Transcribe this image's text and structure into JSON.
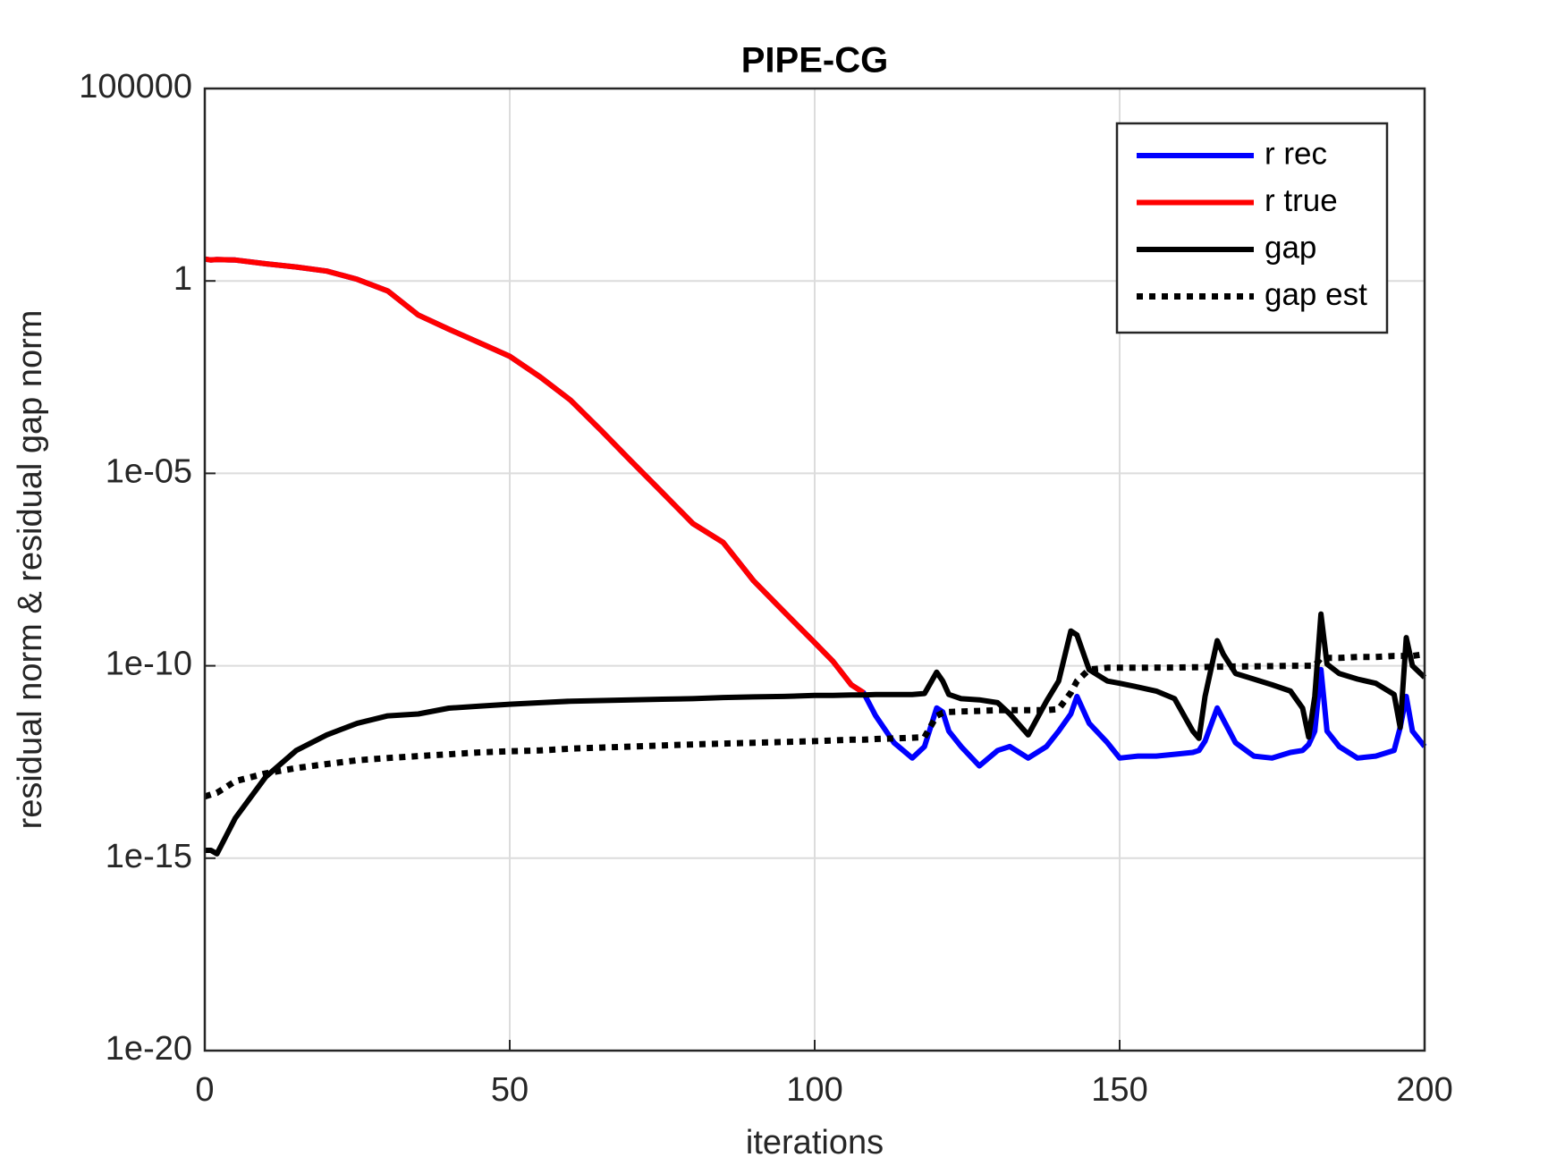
{
  "chart_data": {
    "type": "line",
    "title": "PIPE-CG",
    "xlabel": "iterations",
    "ylabel": "residual norm  &  residual gap norm",
    "log_y": true,
    "grid": true,
    "legend": "upper right",
    "xlim": [
      0,
      200
    ],
    "xticks": [
      0,
      50,
      100,
      150,
      200
    ],
    "ylim": [
      1e-20,
      100000
    ],
    "yticks": [
      {
        "value": 1e-20,
        "label": "1e-20"
      },
      {
        "value": 1e-15,
        "label": "1e-15"
      },
      {
        "value": 1e-10,
        "label": "1e-10"
      },
      {
        "value": 1e-05,
        "label": "1e-05"
      },
      1,
      100000
    ],
    "x": [
      0,
      1,
      2,
      5,
      10,
      15,
      20,
      25,
      30,
      35,
      40,
      45,
      50,
      55,
      60,
      65,
      70,
      75,
      80,
      85,
      90,
      95,
      100,
      103,
      106,
      108,
      110,
      113,
      116,
      118,
      120,
      121,
      122,
      124,
      127,
      130,
      132,
      135,
      138,
      140,
      142,
      143,
      145,
      148,
      150,
      153,
      156,
      159,
      162,
      163,
      164,
      166,
      167,
      169,
      172,
      175,
      178,
      180,
      181,
      182,
      183,
      184,
      186,
      189,
      192,
      195,
      196,
      197,
      198,
      200
    ],
    "series": [
      {
        "name": "r rec",
        "color": "#0000ff",
        "style": "solid",
        "values": [
          3.7,
          3.5,
          3.6,
          3.5,
          2.8,
          2.3,
          1.8,
          1.1,
          0.55,
          0.13,
          0.056,
          0.025,
          0.011,
          0.0032,
          0.00079,
          0.00013,
          2e-05,
          3.2e-06,
          5e-07,
          1.6e-07,
          1.6e-08,
          2.5e-09,
          4e-10,
          1.3e-10,
          3.2e-11,
          2e-11,
          5e-12,
          1e-12,
          4e-13,
          8e-13,
          8e-12,
          6.3e-12,
          2e-12,
          8e-13,
          2.5e-13,
          6.3e-13,
          8e-13,
          4e-13,
          8e-13,
          2e-12,
          5.6e-12,
          1.6e-11,
          3.2e-12,
          1e-12,
          4e-13,
          4.5e-13,
          4.5e-13,
          5e-13,
          5.6e-13,
          6.3e-13,
          1.1e-12,
          8e-12,
          4e-12,
          1e-12,
          4.5e-13,
          4e-13,
          5.6e-13,
          6.3e-13,
          9e-13,
          2e-12,
          8e-11,
          2e-12,
          8e-13,
          4e-13,
          4.5e-13,
          6.3e-13,
          2.5e-12,
          1.6e-11,
          2e-12,
          8e-13
        ]
      },
      {
        "name": "r true",
        "color": "#ff0000",
        "style": "solid",
        "values": [
          3.7,
          3.5,
          3.6,
          3.5,
          2.8,
          2.3,
          1.8,
          1.1,
          0.55,
          0.13,
          0.056,
          0.025,
          0.011,
          0.0032,
          0.00079,
          0.00013,
          2e-05,
          3.2e-06,
          5e-07,
          1.6e-07,
          1.6e-08,
          2.5e-09,
          4e-10,
          1.3e-10,
          3.2e-11,
          2e-11,
          null,
          null,
          null,
          null,
          null,
          null,
          null,
          null,
          null,
          null,
          null,
          null,
          null,
          null,
          null,
          null,
          null,
          null,
          null,
          null,
          null,
          null,
          null,
          null,
          null,
          null,
          null,
          null,
          null,
          null,
          null,
          null,
          null,
          null,
          null,
          null,
          null,
          null,
          null,
          null,
          null,
          null,
          null,
          null
        ]
      },
      {
        "name": "gap",
        "color": "#000000",
        "style": "solid",
        "values": [
          1.6e-15,
          1.6e-15,
          1.3e-15,
          1.1e-14,
          1.3e-13,
          6.3e-13,
          1.6e-12,
          3.2e-12,
          5e-12,
          5.6e-12,
          7.9e-12,
          8.9e-12,
          1e-11,
          1.1e-11,
          1.2e-11,
          1.25e-11,
          1.3e-11,
          1.35e-11,
          1.4e-11,
          1.5e-11,
          1.55e-11,
          1.6e-11,
          1.7e-11,
          1.7e-11,
          1.75e-11,
          1.75e-11,
          1.8e-11,
          1.8e-11,
          1.8e-11,
          1.9e-11,
          6.8e-11,
          4e-11,
          1.8e-11,
          1.4e-11,
          1.3e-11,
          1.1e-11,
          5.6e-12,
          1.6e-12,
          1.2e-11,
          4e-11,
          8e-10,
          6.3e-10,
          7.9e-11,
          4e-11,
          3.5e-11,
          2.8e-11,
          2.2e-11,
          1.4e-11,
          2e-12,
          1.3e-12,
          1.6e-11,
          4.5e-10,
          2e-10,
          6.3e-11,
          4.5e-11,
          3.2e-11,
          2.2e-11,
          7.9e-12,
          1.4e-12,
          1.6e-11,
          2.2e-09,
          1.1e-10,
          6.3e-11,
          4.5e-11,
          3.5e-11,
          1.8e-11,
          2.5e-12,
          5.4e-10,
          1e-10,
          5e-11
        ]
      },
      {
        "name": "gap est",
        "color": "#000000",
        "style": "dotted",
        "values": [
          4e-14,
          4.5e-14,
          5e-14,
          1e-13,
          1.6e-13,
          2.2e-13,
          2.8e-13,
          3.5e-13,
          4e-13,
          4.5e-13,
          5e-13,
          5.6e-13,
          6e-13,
          6.3e-13,
          7e-13,
          7.5e-13,
          8e-13,
          8.5e-13,
          9e-13,
          9.5e-13,
          1e-12,
          1.05e-12,
          1.1e-12,
          1.15e-12,
          1.2e-12,
          1.2e-12,
          1.25e-12,
          1.3e-12,
          1.35e-12,
          1.4e-12,
          5e-12,
          6e-12,
          6.3e-12,
          6.5e-12,
          6.7e-12,
          7e-12,
          7e-12,
          7e-12,
          7e-12,
          7.5e-12,
          2e-11,
          4e-11,
          8e-11,
          8.9e-11,
          8.9e-11,
          8.9e-11,
          9e-11,
          9e-11,
          9.2e-11,
          9.2e-11,
          9.3e-11,
          9.5e-11,
          9.5e-11,
          9.6e-11,
          9.7e-11,
          9.8e-11,
          1e-10,
          1e-10,
          1e-10,
          1e-10,
          1.6e-10,
          1.6e-10,
          1.6e-10,
          1.7e-10,
          1.7e-10,
          1.8e-10,
          1.8e-10,
          1.8e-10,
          1.8e-10,
          2e-10
        ]
      }
    ]
  }
}
